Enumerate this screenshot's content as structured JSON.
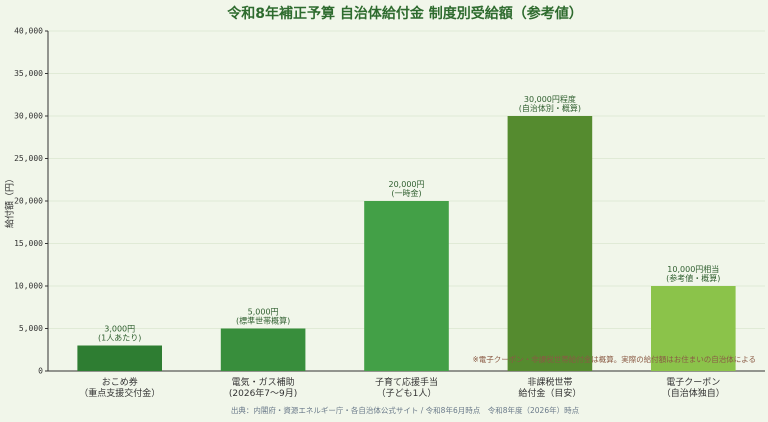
{
  "chart_data": {
    "type": "bar",
    "title": "令和8年補正予算 自治体給付金 制度別受給額（参考値）",
    "y_label": "給付額（円）",
    "categories": [
      "おこめ券\n（重点支援交付金）",
      "電気・ガス補助\n(2026年7〜9月)",
      "子育て応援手当\n（子ども1人）",
      "非課税世帯\n給付金（目安）",
      "電子クーポン\n（自治体独自）"
    ],
    "values": [
      3000,
      5000,
      20000,
      30000,
      10000
    ],
    "value_labels": [
      "3,000円\n(1人あたり)",
      "5,000円\n(標準世帯概算)",
      "20,000円\n(一時金)",
      "30,000円程度\n(自治体別・概算)",
      "10,000円相当\n(参考値・概算)"
    ],
    "colors": [
      "#2e7d32",
      "#388e3c",
      "#43a047",
      "#558b2f",
      "#8bc34a"
    ],
    "ylim": [
      0,
      40000
    ],
    "yticks": [
      {
        "value": 0,
        "label": "0"
      },
      {
        "value": 5000,
        "label": "5,000"
      },
      {
        "value": 10000,
        "label": "10,000"
      },
      {
        "value": 15000,
        "label": "15,000"
      },
      {
        "value": 20000,
        "label": "20,000"
      },
      {
        "value": 25000,
        "label": "25,000"
      },
      {
        "value": 30000,
        "label": "30,000"
      },
      {
        "value": 35000,
        "label": "35,000"
      },
      {
        "value": 40000,
        "label": "40,000"
      }
    ],
    "grid": true,
    "annotation": "※電子クーポン・非課税世帯給付金は概算。実際の給付額はお住まいの自治体による",
    "source": "出典：内閣府・資源エネルギー庁・各自治体公式サイト / 令和8年6月時点　令和8年度（2026年）時点"
  }
}
